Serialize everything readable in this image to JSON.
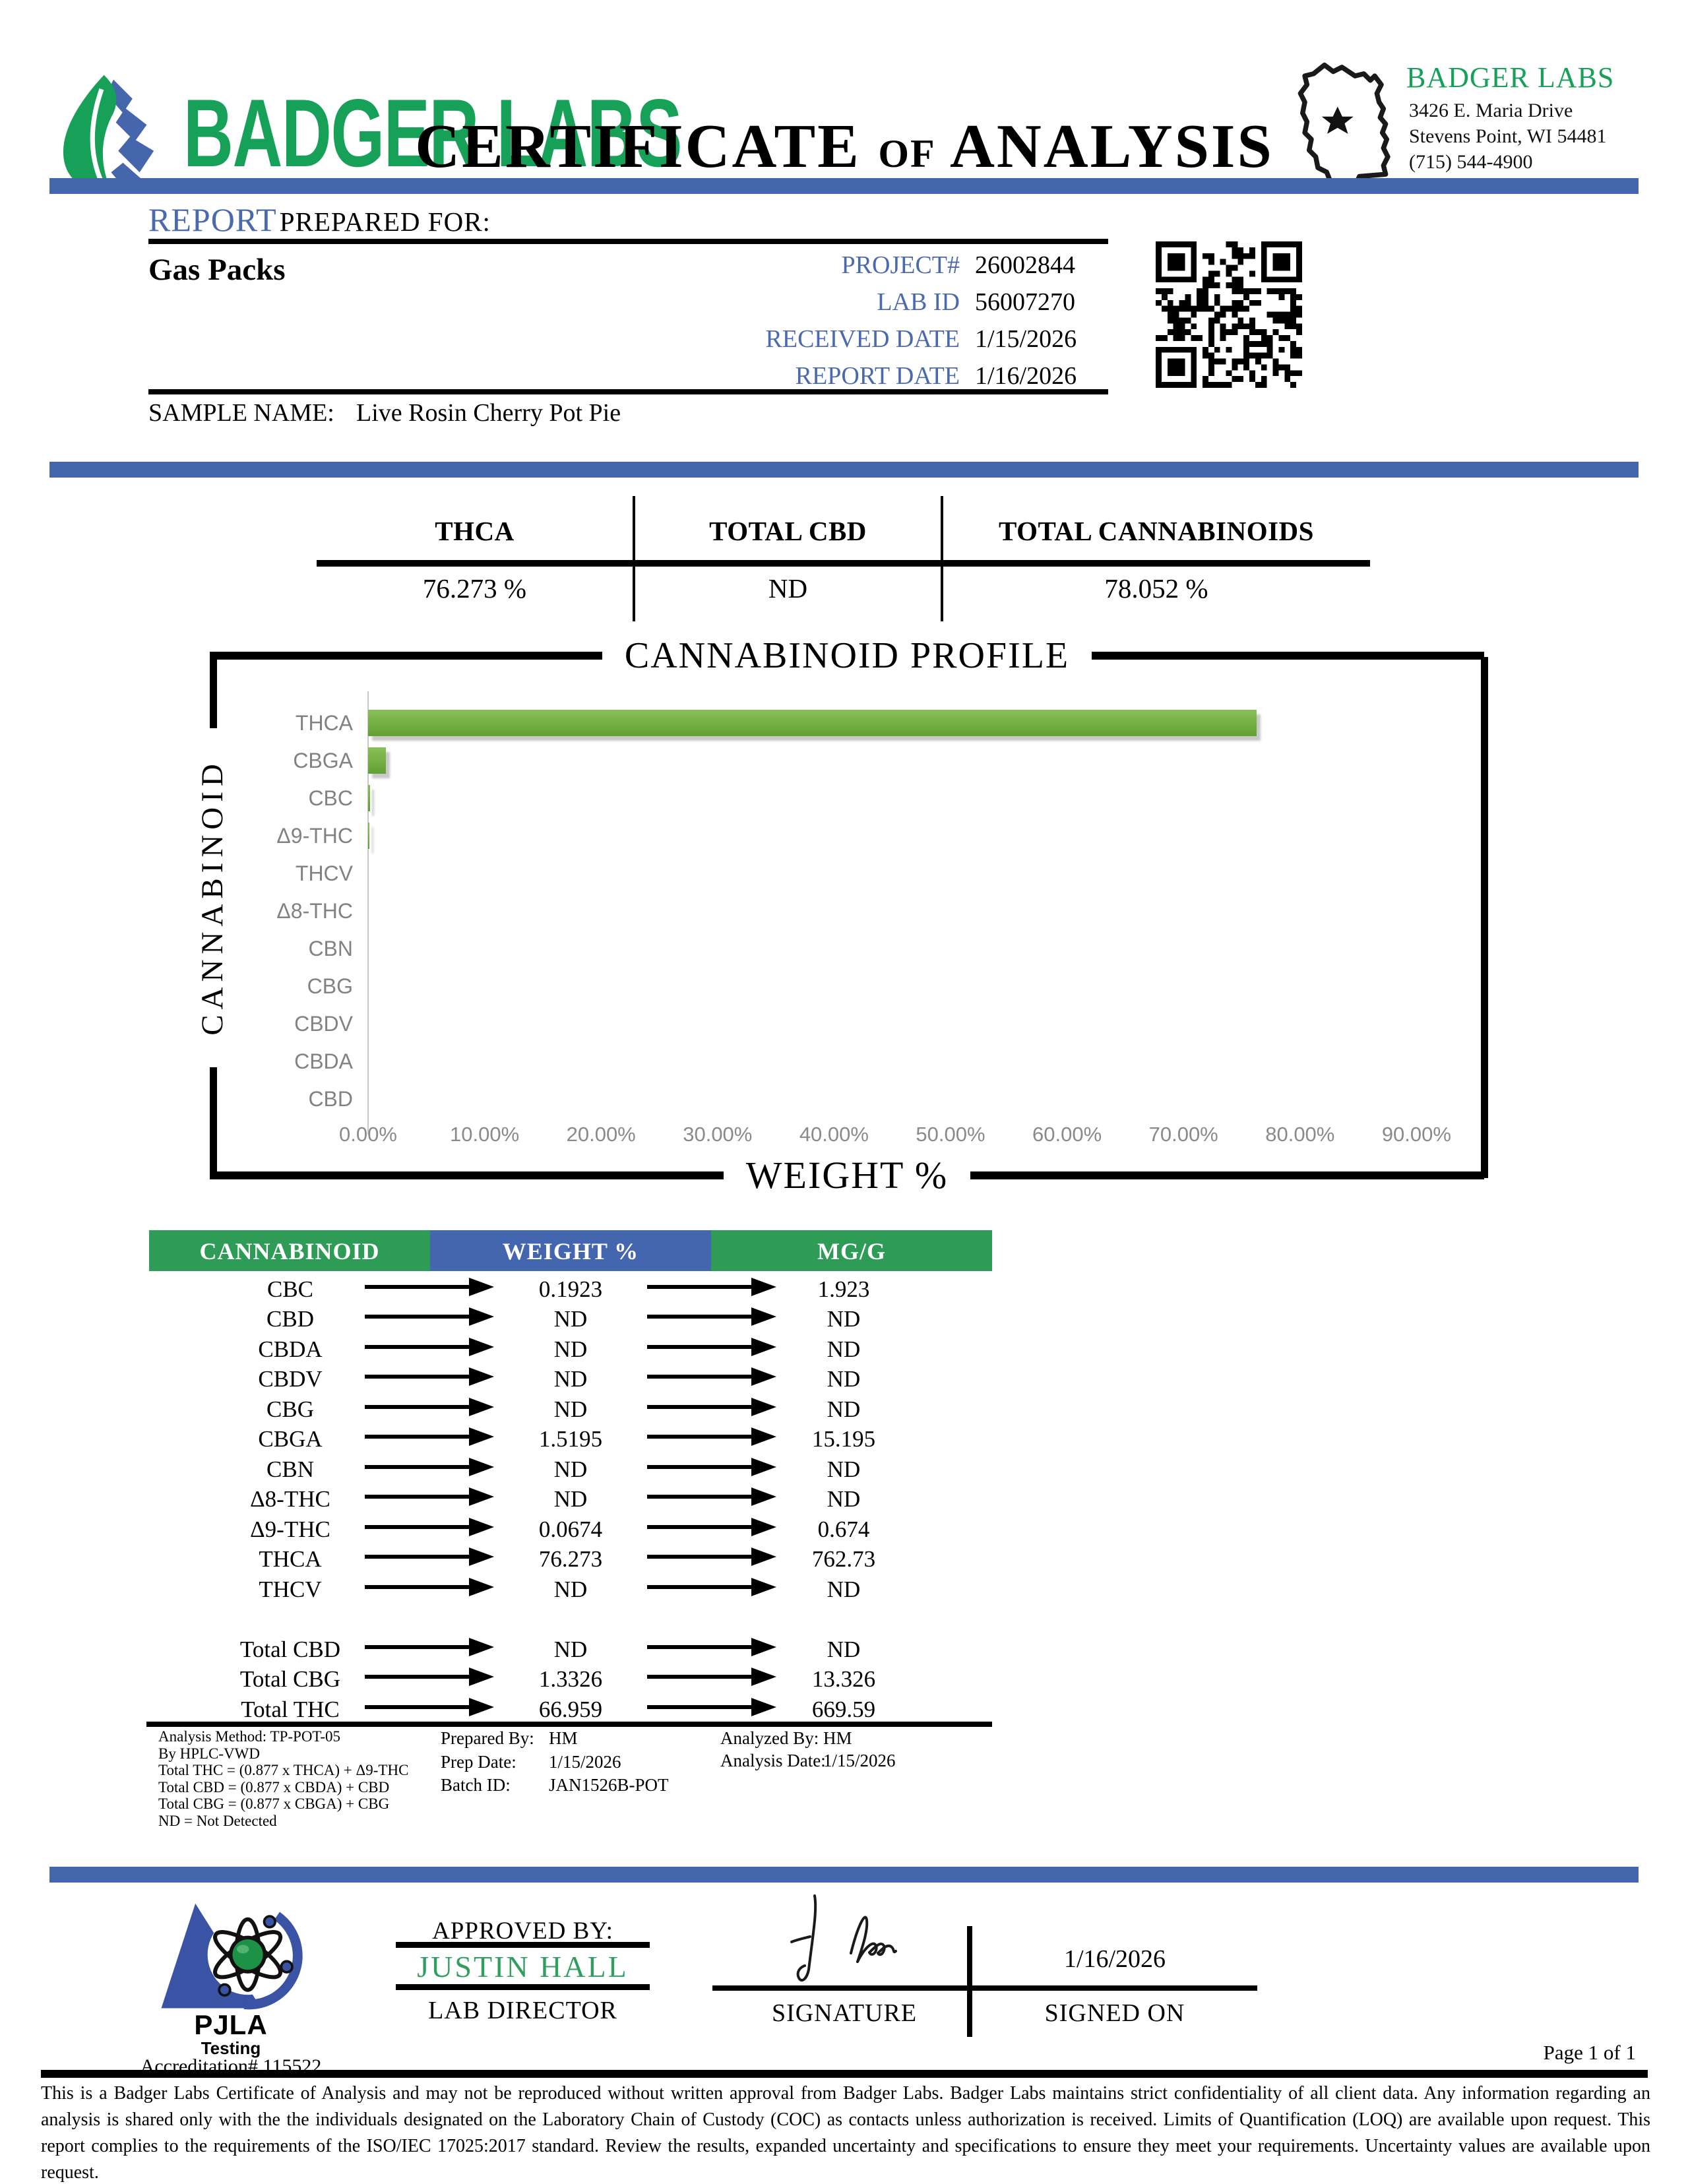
{
  "header": {
    "logo_text": "BADGER LABS",
    "title_main": "CERTIFICATE",
    "title_of": "OF",
    "title_rest": "ANALYSIS",
    "lab_name": "BADGER LABS",
    "address_line1": "3426 E. Maria Drive",
    "address_line2": "Stevens Point, WI 54481",
    "phone": "(715) 544-4900",
    "accent_blue": "#4565ac",
    "accent_green": "#17a058"
  },
  "report": {
    "heading_blue": "REPORT",
    "heading_rest": "PREPARED FOR:",
    "client": "Gas Packs",
    "fields": [
      {
        "label": "PROJECT#",
        "value": "26002844"
      },
      {
        "label": "LAB ID",
        "value": "56007270"
      },
      {
        "label": "RECEIVED DATE",
        "value": "1/15/2026"
      },
      {
        "label": "REPORT DATE",
        "value": "1/16/2026"
      }
    ],
    "sample_name_label": "SAMPLE NAME:",
    "sample_name": "Live Rosin Cherry Pot Pie"
  },
  "summary": [
    {
      "label": "THCA",
      "value": "76.273 %"
    },
    {
      "label": "TOTAL CBD",
      "value": "ND"
    },
    {
      "label": "TOTAL CANNABINOIDS",
      "value": "78.052 %"
    }
  ],
  "chart_data": {
    "type": "bar",
    "orientation": "horizontal",
    "title": "CANNABINOID PROFILE",
    "xlabel": "WEIGHT %",
    "ylabel": "CANNABINOID",
    "categories": [
      "THCA",
      "CBGA",
      "CBC",
      "Δ9-THC",
      "THCV",
      "Δ8-THC",
      "CBN",
      "CBG",
      "CBDV",
      "CBDA",
      "CBD"
    ],
    "values": [
      76.273,
      1.5195,
      0.1923,
      0.0674,
      0,
      0,
      0,
      0,
      0,
      0,
      0
    ],
    "xlim": [
      0,
      90
    ],
    "ticks": [
      "0.00%",
      "10.00%",
      "20.00%",
      "30.00%",
      "40.00%",
      "50.00%",
      "60.00%",
      "70.00%",
      "80.00%",
      "90.00%"
    ],
    "bar_color": "#6aab3c",
    "grid": false,
    "legend": "none"
  },
  "table": {
    "headers": [
      "CANNABINOID",
      "WEIGHT %",
      "MG/G"
    ],
    "rows": [
      {
        "name": "CBC",
        "weight": "0.1923",
        "mgg": "1.923"
      },
      {
        "name": "CBD",
        "weight": "ND",
        "mgg": "ND"
      },
      {
        "name": "CBDA",
        "weight": "ND",
        "mgg": "ND"
      },
      {
        "name": "CBDV",
        "weight": "ND",
        "mgg": "ND"
      },
      {
        "name": "CBG",
        "weight": "ND",
        "mgg": "ND"
      },
      {
        "name": "CBGA",
        "weight": "1.5195",
        "mgg": "15.195"
      },
      {
        "name": "CBN",
        "weight": "ND",
        "mgg": "ND"
      },
      {
        "name": "Δ8-THC",
        "weight": "ND",
        "mgg": "ND"
      },
      {
        "name": "Δ9-THC",
        "weight": "0.0674",
        "mgg": "0.674"
      },
      {
        "name": "THCA",
        "weight": "76.273",
        "mgg": "762.73"
      },
      {
        "name": "THCV",
        "weight": "ND",
        "mgg": "ND"
      }
    ],
    "totals": [
      {
        "name": "Total CBD",
        "weight": "ND",
        "mgg": "ND"
      },
      {
        "name": "Total CBG",
        "weight": "1.3326",
        "mgg": "13.326"
      },
      {
        "name": "Total THC",
        "weight": "66.959",
        "mgg": "669.59"
      }
    ]
  },
  "notes": {
    "method_lines": [
      "Analysis Method: TP-POT-05",
      "By HPLC-VWD",
      "Total THC = (0.877 x  THCA) + Δ9-THC",
      "Total CBD = (0.877 x  CBDA) + CBD",
      "Total CBG = (0.877 x  CBGA) + CBG",
      "ND = Not Detected"
    ],
    "prepared": [
      {
        "label": "Prepared By:",
        "value": "HM"
      },
      {
        "label": "Prep Date:",
        "value": "1/15/2026"
      },
      {
        "label": "Batch ID:",
        "value": "JAN1526B-POT"
      }
    ],
    "analyzed": [
      {
        "label": "Analyzed By:",
        "value": "HM"
      },
      {
        "label": "Analysis Date:",
        "value": "1/15/2026"
      }
    ]
  },
  "footer": {
    "pjla_name": "PJLA",
    "pjla_sub": "Testing",
    "pjla_accreditation": "Accreditation# 115522",
    "approved_by_label": "APPROVED BY:",
    "approver": "JUSTIN HALL",
    "approver_title": "LAB DIRECTOR",
    "signature_label": "SIGNATURE",
    "signed_on_label": "SIGNED ON",
    "signed_on_date": "1/16/2026",
    "page": "Page 1 of 1",
    "disclaimer": "This is a Badger Labs Certificate of Analysis and may not be reproduced without written approval from Badger Labs. Badger Labs maintains strict confidentiality of all client data. Any information regarding an analysis is shared only with the the individuals designated on the Laboratory Chain of Custody (COC) as contacts unless authorization is received. Limits of Quantification (LOQ) are available upon request. This report complies to the requirements of the ISO/IEC 17025:2017 standard. Review the results, expanded uncertainty and specifications to ensure they meet your requirements. Uncertainty values are available upon request."
  }
}
